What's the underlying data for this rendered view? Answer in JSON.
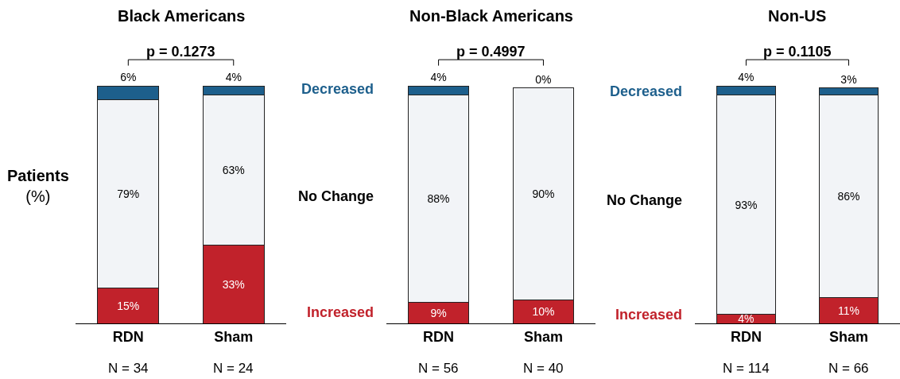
{
  "chart_data": [
    {
      "type": "bar",
      "stacked": true,
      "title": "Black Americans",
      "ylabel": "Patients\n(%)",
      "categories": [
        "RDN",
        "Sham"
      ],
      "annotations": [
        "p = 0.1273",
        "N = 34",
        "N = 24"
      ],
      "series": [
        {
          "color": "#c1222b",
          "values": [
            15,
            33
          ],
          "value_labels": [
            "15%",
            "33%"
          ]
        },
        {
          "color": "#f2f4f7",
          "values": [
            79,
            63
          ],
          "value_labels": [
            "79%",
            "63%"
          ]
        },
        {
          "color": "#1d5f8c",
          "values": [
            6,
            4
          ],
          "value_labels": [
            "6%",
            "4%"
          ]
        }
      ]
    },
    {
      "type": "bar",
      "stacked": true,
      "title": "Non-Black Americans",
      "categories": [
        "RDN",
        "Sham"
      ],
      "annotations": [
        "p = 0.4997",
        "N = 56",
        "N = 40"
      ],
      "series": [
        {
          "name": "Increased",
          "color": "#c1222b",
          "values": [
            9,
            10
          ],
          "value_labels": [
            "9%",
            "10%"
          ]
        },
        {
          "name": "No Change",
          "color": "#f2f4f7",
          "values": [
            88,
            90
          ],
          "value_labels": [
            "88%",
            "90%"
          ]
        },
        {
          "name": "Decreased",
          "color": "#1d5f8c",
          "values": [
            4,
            0
          ],
          "value_labels": [
            "4%",
            "0%"
          ]
        }
      ]
    },
    {
      "type": "bar",
      "stacked": true,
      "title": "Non-US",
      "categories": [
        "RDN",
        "Sham"
      ],
      "annotations": [
        "p = 0.1105",
        "N = 114",
        "N = 66"
      ],
      "series": [
        {
          "name": "Increased",
          "color": "#c1222b",
          "values": [
            4,
            11
          ],
          "value_labels": [
            "4%",
            "11%"
          ]
        },
        {
          "name": "No Change",
          "color": "#f2f4f7",
          "values": [
            93,
            86
          ],
          "value_labels": [
            "93%",
            "86%"
          ]
        },
        {
          "name": "Decreased",
          "color": "#1d5f8c",
          "values": [
            4,
            3
          ],
          "value_labels": [
            "4%",
            "3%"
          ]
        }
      ]
    }
  ]
}
